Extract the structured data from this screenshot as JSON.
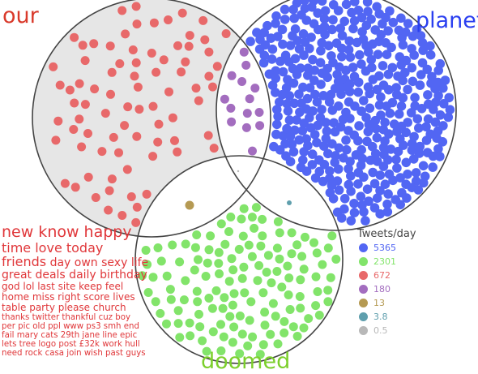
{
  "venn": {
    "sets": [
      {
        "key": "our",
        "label": "our",
        "color": "#d93a2b",
        "fill": "#e6e6e6"
      },
      {
        "key": "planet",
        "label": "planet",
        "color": "#2a3ff0",
        "fill": "#ffffff"
      },
      {
        "key": "doomed",
        "label": "doomed",
        "color": "#7ccf2c",
        "fill": "#ffffff"
      }
    ]
  },
  "legend": {
    "title": "Tweets/day",
    "items": [
      {
        "value": "5365",
        "color": "#5266f3",
        "region": "planet only"
      },
      {
        "value": "2301",
        "color": "#82e46a",
        "region": "doomed only"
      },
      {
        "value": "672",
        "color": "#e8696a",
        "region": "our only"
      },
      {
        "value": "180",
        "color": "#a36dbf",
        "region": "our & planet"
      },
      {
        "value": "13",
        "color": "#b59a53",
        "region": "our & doomed"
      },
      {
        "value": "3.8",
        "color": "#5f9fad",
        "region": "planet & doomed"
      },
      {
        "value": "0.5",
        "color": "#b8b8b8",
        "region": "our & planet & doomed"
      }
    ]
  },
  "word_cloud": {
    "lines": [
      {
        "text": "new know happy",
        "size": "big"
      },
      {
        "text": "time love today",
        "size": "medium"
      },
      {
        "segments": [
          {
            "text": "friends",
            "size": "medium-bold"
          },
          {
            "text": " day own sexy life",
            "size": "medium-small"
          }
        ]
      },
      {
        "text": "great deals daily birthday",
        "size": "medium-small"
      },
      {
        "text": "god lol last site keep feel",
        "size": "small"
      },
      {
        "text": "home miss right score lives",
        "size": "small"
      },
      {
        "text": "table party please church",
        "size": "small"
      },
      {
        "text": "thanks twitter thankful cuz boy",
        "size": "tiny"
      },
      {
        "text": "per pic old ppl www ps3 smh end",
        "size": "tiny"
      },
      {
        "text": "fail mary cats 29th jane line epic",
        "size": "tiny"
      },
      {
        "text": "lets tree logo post £32k work hull",
        "size": "tiny"
      },
      {
        "text": "need rock casa join wish past guys",
        "size": "tiny"
      }
    ]
  }
}
